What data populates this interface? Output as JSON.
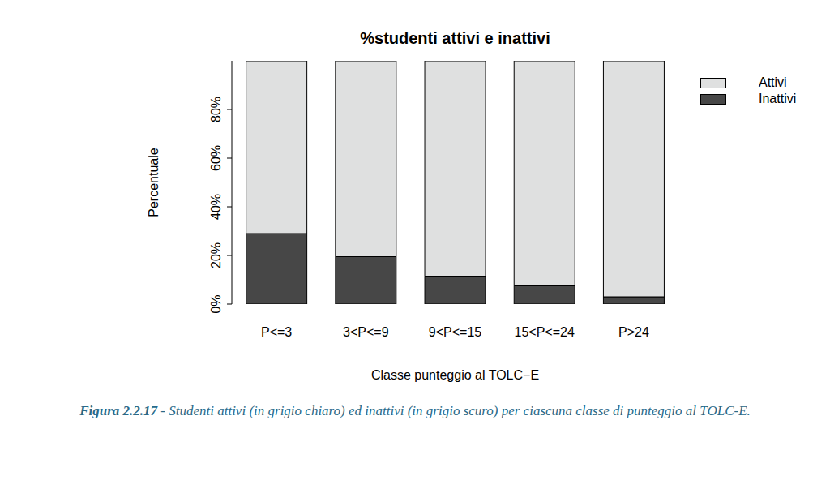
{
  "chart_data": {
    "type": "bar",
    "title": "%studenti attivi e inattivi",
    "x_label": "Classe punteggio al TOLC−E",
    "y_label": "Percentuale",
    "categories": [
      "P<=3",
      "3<P<=9",
      "9<P<=15",
      "15<P<=24",
      "P>24"
    ],
    "series": [
      {
        "name": "Attivi",
        "color": "#dfe0e0",
        "values": [
          71,
          80.5,
          88.5,
          92.5,
          97
        ]
      },
      {
        "name": "Inattivi",
        "color": "#474747",
        "values": [
          29,
          19.5,
          11.5,
          7.5,
          3
        ]
      }
    ],
    "ylim": [
      0,
      100
    ],
    "yticks": [
      {
        "value": 0,
        "label": "0%"
      },
      {
        "value": 20,
        "label": "20%"
      },
      {
        "value": 40,
        "label": "40%"
      },
      {
        "value": 60,
        "label": "60%"
      },
      {
        "value": 80,
        "label": "80%"
      }
    ],
    "stacked": true,
    "legend": "right",
    "grid": false,
    "caption": {
      "label": "Figura 2.2.17",
      "text": "- Studenti attivi (in grigio chiaro) ed inattivi (in grigio scuro) per ciascuna classe di punteggio al TOLC-E."
    }
  }
}
